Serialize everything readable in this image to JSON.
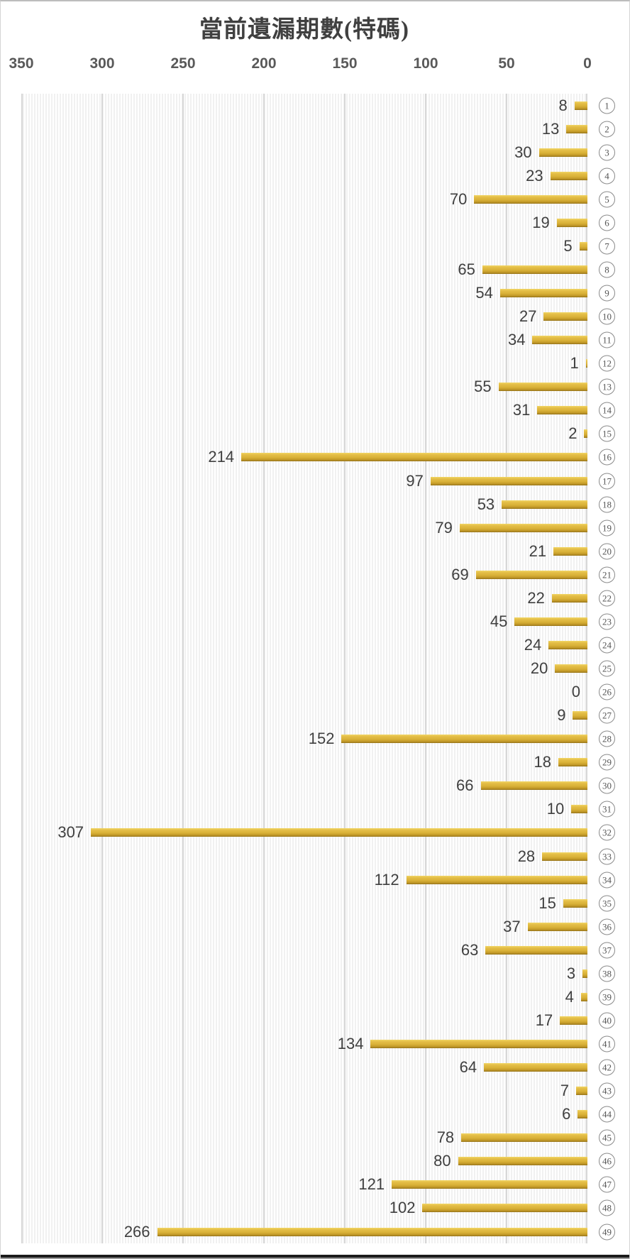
{
  "title": "當前遺漏期數(特碼)",
  "chart_data": {
    "type": "bar",
    "orientation": "horizontal",
    "bars_anchored": "right",
    "title": "當前遺漏期數(特碼)",
    "categories": [
      "1",
      "2",
      "3",
      "4",
      "5",
      "6",
      "7",
      "8",
      "9",
      "10",
      "11",
      "12",
      "13",
      "14",
      "15",
      "16",
      "17",
      "18",
      "19",
      "20",
      "21",
      "22",
      "23",
      "24",
      "25",
      "26",
      "27",
      "28",
      "29",
      "30",
      "31",
      "32",
      "33",
      "34",
      "35",
      "36",
      "37",
      "38",
      "39",
      "40",
      "41",
      "42",
      "43",
      "44",
      "45",
      "46",
      "47",
      "48",
      "49"
    ],
    "category_label_style": "circled-number",
    "values": [
      8,
      13,
      30,
      23,
      70,
      19,
      5,
      65,
      54,
      27,
      34,
      1,
      55,
      31,
      2,
      214,
      97,
      53,
      79,
      21,
      69,
      22,
      45,
      24,
      20,
      0,
      9,
      152,
      18,
      66,
      10,
      307,
      28,
      112,
      15,
      37,
      63,
      3,
      4,
      17,
      134,
      64,
      7,
      6,
      78,
      80,
      121,
      102,
      266
    ],
    "data_labels": true,
    "x_axis": {
      "position": "top",
      "reversed": true,
      "min": 0,
      "max": 350,
      "ticks": [
        350,
        300,
        250,
        200,
        150,
        100,
        50,
        0
      ]
    },
    "grid": true,
    "legend": false,
    "colors": {
      "bar_top": "#F2D766",
      "bar_mid": "#D9B138",
      "bar_bottom": "#97741A",
      "title_text": "#404040",
      "axis_label": "#595959",
      "value_label": "#3F3F3F",
      "gridline": "#D7D7D7",
      "plot_stripe": "#F1F1F1",
      "category_circle": "#8A8A8A"
    }
  }
}
